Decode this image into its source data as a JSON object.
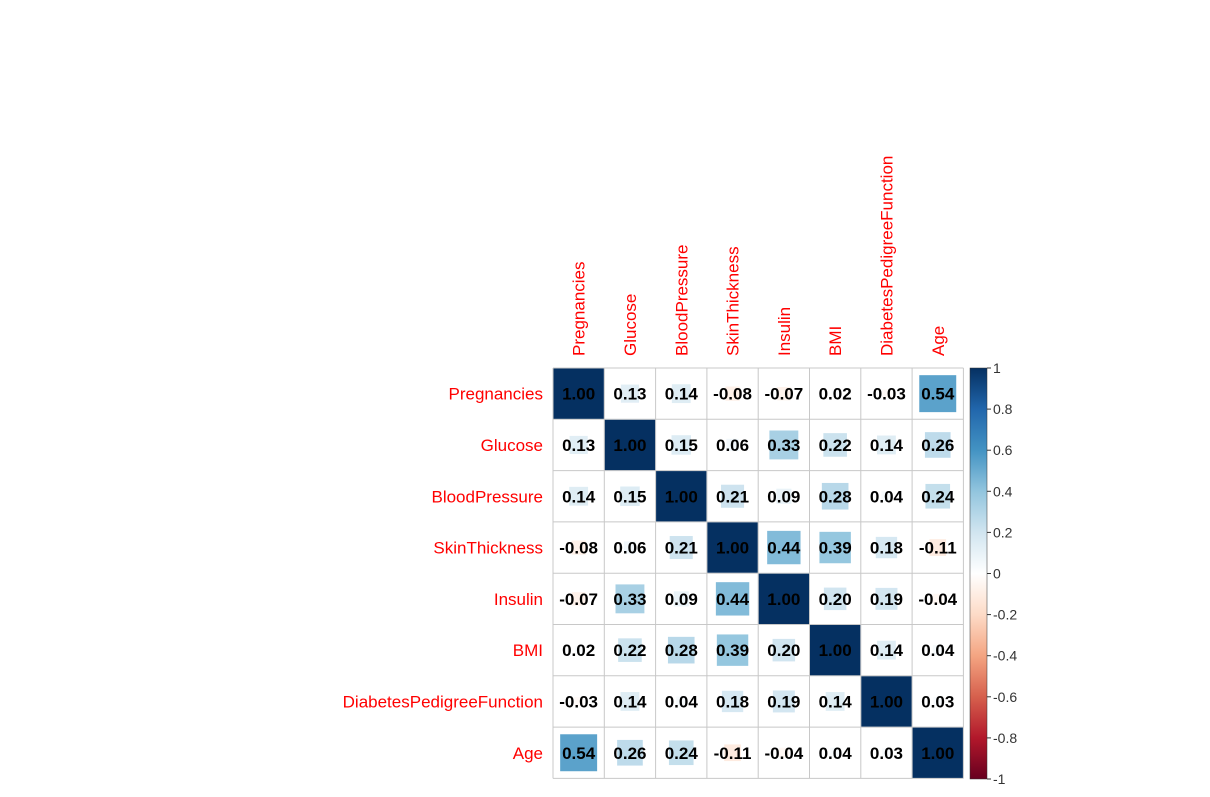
{
  "chart_data": {
    "type": "heatmap",
    "title": "",
    "variables": [
      "Pregnancies",
      "Glucose",
      "BloodPressure",
      "SkinThickness",
      "Insulin",
      "BMI",
      "DiabetesPedigreeFunction",
      "Age"
    ],
    "matrix": [
      [
        1.0,
        0.13,
        0.14,
        -0.08,
        -0.07,
        0.02,
        -0.03,
        0.54
      ],
      [
        0.13,
        1.0,
        0.15,
        0.06,
        0.33,
        0.22,
        0.14,
        0.26
      ],
      [
        0.14,
        0.15,
        1.0,
        0.21,
        0.09,
        0.28,
        0.04,
        0.24
      ],
      [
        -0.08,
        0.06,
        0.21,
        1.0,
        0.44,
        0.39,
        0.18,
        -0.11
      ],
      [
        -0.07,
        0.33,
        0.09,
        0.44,
        1.0,
        0.2,
        0.19,
        -0.04
      ],
      [
        0.02,
        0.22,
        0.28,
        0.39,
        0.2,
        1.0,
        0.14,
        0.04
      ],
      [
        -0.03,
        0.14,
        0.04,
        0.18,
        0.19,
        0.14,
        1.0,
        0.03
      ],
      [
        0.54,
        0.26,
        0.24,
        -0.11,
        -0.04,
        0.04,
        0.03,
        1.0
      ]
    ],
    "value_range": [
      -1,
      1
    ],
    "colorbar_ticks": [
      "1",
      "0.8",
      "0.6",
      "0.4",
      "0.2",
      "0",
      "-0.2",
      "-0.4",
      "-0.6",
      "-0.8",
      "-1"
    ],
    "colorbar_colors": [
      "#67001F",
      "#B2182B",
      "#D6604D",
      "#F4A582",
      "#FDDBC7",
      "#FFFFFF",
      "#D1E5F0",
      "#92C5DE",
      "#4393C3",
      "#2166AC",
      "#053061"
    ],
    "label_color": "#FF0000",
    "value_label_color": "#000000",
    "legend": "right"
  }
}
